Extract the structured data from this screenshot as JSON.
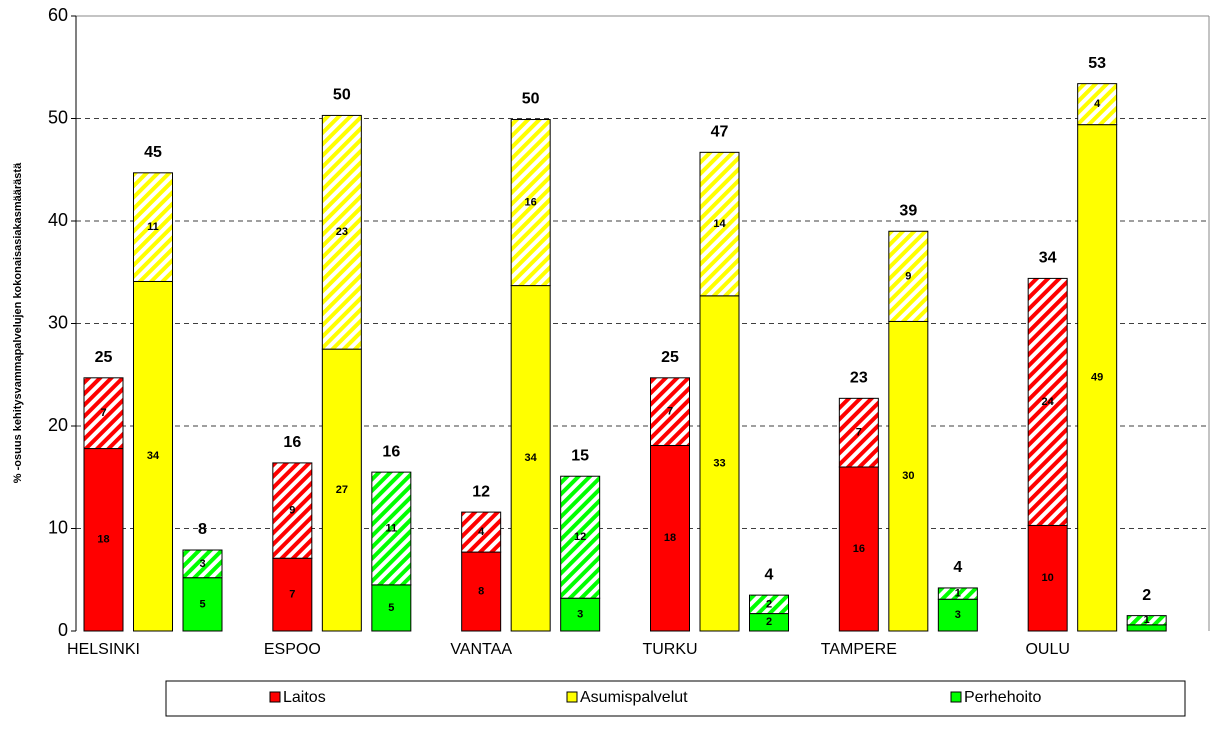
{
  "chart_data": {
    "type": "stacked_grouped_bar",
    "ylabel": "% -osuus kehitysvammapalvelujen kokonaisasiakasmäärästä",
    "categories": [
      "HELSINKI",
      "ESPOO",
      "VANTAA",
      "TURKU",
      "TAMPERE",
      "OULU"
    ],
    "ylim": [
      0,
      60
    ],
    "yticks": [
      0,
      10,
      20,
      30,
      40,
      50,
      60
    ],
    "grid": true,
    "legend": "bottom",
    "series": [
      {
        "name": "Laitos",
        "color": "#ff0000",
        "values": [
          17.8,
          7.1,
          7.7,
          18.1,
          16.0,
          10.3
        ],
        "value_labels": [
          "18",
          "7",
          "8",
          "18",
          "16",
          "10"
        ],
        "hatched_values": [
          6.9,
          9.3,
          3.9,
          6.6,
          6.7,
          24.1
        ],
        "hatched_value_labels": [
          "7",
          "9",
          "4",
          "7",
          "7",
          "24"
        ],
        "total_labels": [
          "25",
          "16",
          "12",
          "25",
          "23",
          "34"
        ]
      },
      {
        "name": "Asumispalvelut",
        "color": "#ffff00",
        "values": [
          34.1,
          27.5,
          33.7,
          32.7,
          30.2,
          49.4
        ],
        "value_labels": [
          "34",
          "27",
          "34",
          "33",
          "30",
          "49"
        ],
        "hatched_values": [
          10.6,
          22.8,
          16.2,
          14.0,
          8.8,
          4.0
        ],
        "hatched_value_labels": [
          "11",
          "23",
          "16",
          "14",
          "9",
          "4"
        ],
        "total_labels": [
          "45",
          "50",
          "50",
          "47",
          "39",
          "53"
        ]
      },
      {
        "name": "Perhehoito",
        "color": "#00ff00",
        "values": [
          5.2,
          4.5,
          3.2,
          1.7,
          3.1,
          0.6
        ],
        "value_labels": [
          "5",
          "5",
          "3",
          "2",
          "3",
          null
        ],
        "hatched_values": [
          2.7,
          11.0,
          11.9,
          1.8,
          1.1,
          0.9
        ],
        "hatched_value_labels": [
          "3",
          "11",
          "12",
          "2",
          "1",
          "1"
        ],
        "total_labels": [
          "8",
          "16",
          "15",
          "4",
          "4",
          "2"
        ]
      }
    ]
  }
}
